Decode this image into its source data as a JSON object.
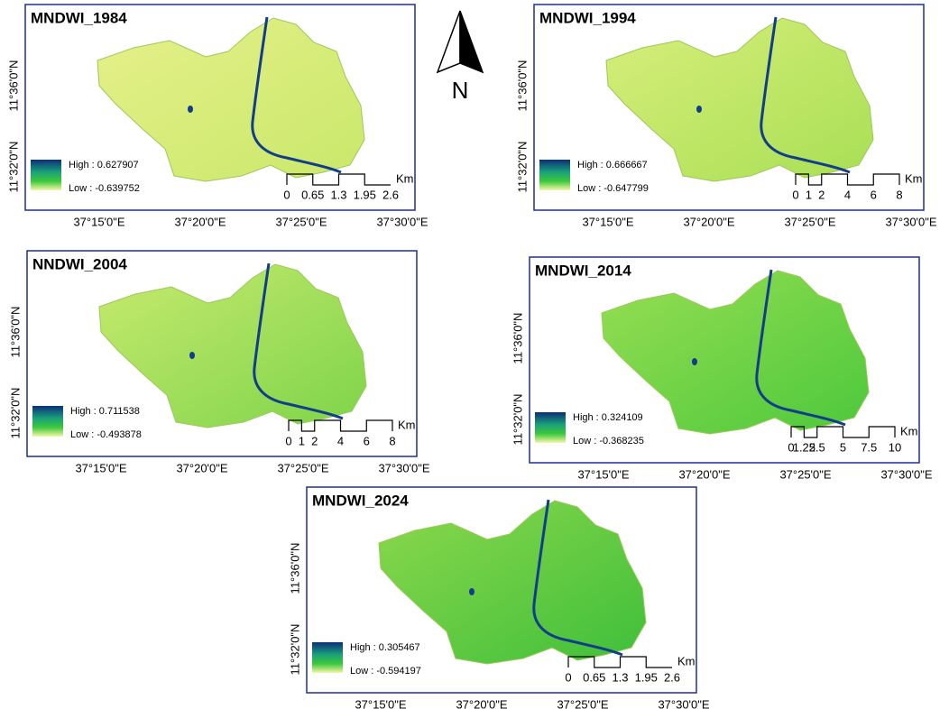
{
  "north_arrow": {
    "label": "N"
  },
  "panels": [
    {
      "title": "MNDWI_1984",
      "legend": {
        "high": "High : 0.627907",
        "low": "Low : -0.639752"
      },
      "scale_labels": [
        "0",
        "0.65",
        "1.3",
        "1.95",
        "2.6"
      ],
      "scale_unit": "Km",
      "lat_labels": [
        "11°36'0\"N",
        "11°32'0\"N"
      ],
      "lon_labels": [
        "37°15'0\"E",
        "37°20'0\"E",
        "37°25'0\"E",
        "37°30'0\"E"
      ]
    },
    {
      "title": "MNDWI_1994",
      "legend": {
        "high": "High : 0.666667",
        "low": "Low : -0.647799"
      },
      "scale_labels": [
        "0",
        "1",
        "2",
        "4",
        "6",
        "8"
      ],
      "scale_unit": "Km",
      "lat_labels": [
        "11°36'0\"N",
        "11°32'0\"N"
      ],
      "lon_labels": [
        "37°15'0\"E",
        "37°20'0\"E",
        "37°25'0\"E",
        "37°30'0\"E"
      ]
    },
    {
      "title": "NNDWI_2004",
      "legend": {
        "high": "High : 0.711538",
        "low": "Low : -0.493878"
      },
      "scale_labels": [
        "0",
        "1",
        "2",
        "4",
        "6",
        "8"
      ],
      "scale_unit": "Km",
      "lat_labels": [
        "11°36'0\"N",
        "11°32'0\"N"
      ],
      "lon_labels": [
        "37°15'0\"E",
        "37°20'0\"E",
        "37°25'0\"E",
        "37°30'0\"E"
      ]
    },
    {
      "title": "MNDWI_2014",
      "legend": {
        "high": "High : 0.324109",
        "low": "Low : -0.368235"
      },
      "scale_labels": [
        "0",
        "1.25",
        "2.5",
        "5",
        "7.5",
        "10"
      ],
      "scale_unit": "Km",
      "lat_labels": [
        "11°36'0\"N",
        "11°32'0\"N"
      ],
      "lon_labels": [
        "37°15'0\"E",
        "37°20'0\"E",
        "37°25'0\"E",
        "37°30'0\"E"
      ]
    },
    {
      "title": "MNDWI_2024",
      "legend": {
        "high": "High : 0.305467",
        "low": "Low : -0.594197"
      },
      "scale_labels": [
        "0",
        "0.65",
        "1.3",
        "1.95",
        "2.6"
      ],
      "scale_unit": "Km",
      "lat_labels": [
        "11°36'0\"N",
        "11°32'0\"N"
      ],
      "lon_labels": [
        "37°15'0\"E",
        "37°20'0\"E",
        "37°25'0\"E",
        "37°30'0\"E"
      ]
    }
  ]
}
